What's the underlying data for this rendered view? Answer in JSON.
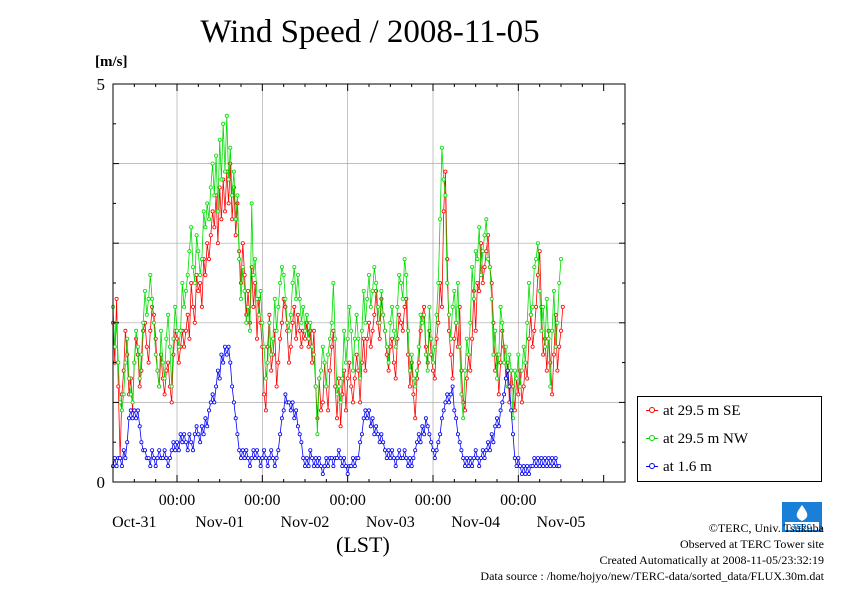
{
  "page": {
    "title": "Wind Speed / 2008-11-05",
    "credits": [
      "©TERC, Univ. Tsukuba",
      "Observed at TERC Tower site",
      "Created Automatically at 2008-11-05/23:32:19",
      "Data source : /home/hojyo/new/TERC-data/sorted_data/FLUX.30m.dat"
    ],
    "logo_text": "TERC"
  },
  "chart_data": {
    "type": "line",
    "title": "Wind Speed / 2008-11-05",
    "ylabel": "[m/s]",
    "xlabel": "(LST)",
    "ylim": [
      0,
      5
    ],
    "y_ticks": [
      "0",
      "5"
    ],
    "x_range_hours": [
      -18,
      126
    ],
    "time_ticks": [
      {
        "hour": 0,
        "label": "00:00"
      },
      {
        "hour": 24,
        "label": "00:00"
      },
      {
        "hour": 48,
        "label": "00:00"
      },
      {
        "hour": 72,
        "label": "00:00"
      },
      {
        "hour": 96,
        "label": "00:00"
      }
    ],
    "date_labels": [
      {
        "hour": -12,
        "label": "Oct-31"
      },
      {
        "hour": 12,
        "label": "Nov-01"
      },
      {
        "hour": 36,
        "label": "Nov-02"
      },
      {
        "hour": 60,
        "label": "Nov-03"
      },
      {
        "hour": 84,
        "label": "Nov-04"
      },
      {
        "hour": 108,
        "label": "Nov-05"
      }
    ],
    "grid": true,
    "legend_position": "right-bottom",
    "series": [
      {
        "name": "at 29.5 m SE",
        "color": "#ff0000",
        "step_hours": 0.5,
        "start_hour": -18,
        "values": [
          2.0,
          1.5,
          2.3,
          1.2,
          0.3,
          1.1,
          1.4,
          1.9,
          1.6,
          1.1,
          1.3,
          0.9,
          1.5,
          1.8,
          1.6,
          1.2,
          1.4,
          1.9,
          2.0,
          1.7,
          1.5,
          1.9,
          2.2,
          2.1,
          1.8,
          1.4,
          1.2,
          1.6,
          1.3,
          1.1,
          1.4,
          1.5,
          1.2,
          1.0,
          1.6,
          1.9,
          1.8,
          1.5,
          1.7,
          1.9,
          1.7,
          1.9,
          2.1,
          1.8,
          2.5,
          2.2,
          2.0,
          2.6,
          2.4,
          2.5,
          2.2,
          2.8,
          2.6,
          3.0,
          2.8,
          3.1,
          3.4,
          3.2,
          3.6,
          3.0,
          3.7,
          3.3,
          3.8,
          3.4,
          3.9,
          3.5,
          4.0,
          3.3,
          3.7,
          3.1,
          3.5,
          2.9,
          2.5,
          3.0,
          2.6,
          2.1,
          2.4,
          2.0,
          2.7,
          2.2,
          2.5,
          1.8,
          2.3,
          2.0,
          1.7,
          1.1,
          0.9,
          1.7,
          2.1,
          1.4,
          1.6,
          1.9,
          1.2,
          1.5,
          1.8,
          2.0,
          2.3,
          2.2,
          1.9,
          1.5,
          1.7,
          2.0,
          2.2,
          1.8,
          2.1,
          1.9,
          1.7,
          1.9,
          1.8,
          2.0,
          1.7,
          1.9,
          1.5,
          1.9,
          1.2,
          0.8,
          1.3,
          0.9,
          1.0,
          1.5,
          1.2,
          0.9,
          1.4,
          1.7,
          1.9,
          1.2,
          0.8,
          1.3,
          0.7,
          1.1,
          1.4,
          0.9,
          1.3,
          1.5,
          1.2,
          1.0,
          1.3,
          1.6,
          1.4,
          1.0,
          1.5,
          1.8,
          1.4,
          1.8,
          2.0,
          1.7,
          1.9,
          2.1,
          2.4,
          2.0,
          1.8,
          2.3,
          2.1,
          1.9,
          1.6,
          1.4,
          1.7,
          1.8,
          1.5,
          1.3,
          1.8,
          2.1,
          2.0,
          1.9,
          2.2,
          2.3,
          1.6,
          1.2,
          1.5,
          1.1,
          0.8,
          1.3,
          1.5,
          1.9,
          2.1,
          2.2,
          1.7,
          1.5,
          1.9,
          1.6,
          1.4,
          1.3,
          1.8,
          2.0,
          2.5,
          2.2,
          3.4,
          3.9,
          2.8,
          1.9,
          1.6,
          1.3,
          1.8,
          2.0,
          1.7,
          2.2,
          1.4,
          1.0,
          0.9,
          1.3,
          1.6,
          1.4,
          1.8,
          2.4,
          1.9,
          2.5,
          2.4,
          3.0,
          2.5,
          2.7,
          2.9,
          3.1,
          2.7,
          2.5,
          2.0,
          1.4,
          1.6,
          1.1,
          1.5,
          1.9,
          1.7,
          1.3,
          1.5,
          1.0,
          1.4,
          1.2,
          0.9,
          1.3,
          1.1,
          1.4,
          1.0,
          1.2,
          1.5,
          1.3,
          1.8,
          2.1,
          1.7,
          1.9,
          2.2,
          2.6,
          2.9,
          2.2,
          1.6,
          1.8,
          1.4,
          1.9,
          1.5,
          1.1,
          1.6,
          2.1,
          1.4,
          1.7,
          1.9,
          2.2
        ]
      },
      {
        "name": "at 29.5 m NW",
        "color": "#00dd00",
        "step_hours": 0.5,
        "start_hour": -18,
        "values": [
          2.2,
          1.7,
          2.0,
          1.5,
          1.0,
          0.9,
          1.1,
          1.5,
          1.8,
          1.3,
          1.1,
          1.0,
          1.5,
          1.9,
          1.7,
          1.3,
          1.6,
          2.0,
          2.4,
          2.1,
          2.3,
          2.6,
          2.3,
          2.0,
          1.6,
          1.4,
          1.2,
          1.9,
          1.5,
          1.3,
          1.8,
          2.1,
          1.7,
          1.2,
          1.8,
          2.2,
          1.9,
          1.7,
          1.9,
          2.5,
          2.2,
          2.4,
          2.6,
          2.9,
          3.2,
          2.7,
          2.5,
          3.1,
          2.9,
          2.6,
          2.8,
          3.4,
          3.2,
          3.5,
          3.3,
          3.7,
          4.0,
          3.6,
          4.1,
          3.4,
          4.3,
          3.8,
          4.5,
          3.9,
          4.6,
          3.8,
          4.2,
          3.6,
          3.9,
          3.3,
          3.6,
          2.8,
          2.3,
          2.7,
          2.4,
          2.0,
          2.2,
          1.9,
          3.5,
          2.6,
          2.8,
          2.3,
          2.1,
          2.4,
          2.0,
          1.7,
          1.3,
          1.5,
          2.0,
          1.6,
          1.8,
          2.3,
          1.9,
          2.2,
          2.5,
          2.7,
          2.6,
          2.3,
          2.0,
          1.9,
          2.1,
          2.5,
          2.7,
          2.3,
          2.6,
          2.3,
          2.0,
          2.2,
          1.9,
          2.1,
          1.8,
          2.0,
          1.7,
          1.6,
          1.2,
          0.6,
          1.3,
          1.4,
          1.7,
          1.5,
          1.2,
          1.6,
          1.8,
          2.0,
          2.5,
          1.8,
          1.1,
          1.2,
          1.0,
          1.3,
          1.9,
          1.5,
          1.8,
          2.2,
          1.9,
          1.4,
          1.8,
          2.1,
          1.8,
          1.3,
          1.9,
          2.4,
          2.0,
          2.3,
          2.6,
          2.2,
          2.4,
          2.7,
          2.5,
          2.2,
          2.0,
          2.4,
          2.1,
          1.9,
          1.7,
          1.5,
          2.0,
          2.2,
          1.9,
          1.7,
          2.2,
          2.6,
          2.5,
          2.3,
          2.8,
          2.6,
          1.9,
          1.4,
          1.6,
          1.3,
          1.2,
          1.4,
          1.7,
          2.1,
          2.0,
          2.1,
          1.6,
          1.4,
          2.2,
          1.8,
          1.5,
          1.7,
          2.1,
          2.5,
          3.3,
          4.2,
          3.8,
          3.6,
          2.5,
          2.1,
          1.8,
          2.2,
          2.4,
          2.0,
          2.5,
          1.7,
          1.1,
          0.8,
          1.4,
          1.8,
          1.6,
          2.0,
          2.7,
          2.3,
          2.9,
          2.8,
          3.2,
          2.6,
          2.9,
          3.1,
          3.3,
          2.8,
          2.7,
          2.3,
          1.6,
          1.9,
          1.3,
          1.6,
          2.2,
          2.0,
          1.5,
          1.7,
          1.2,
          1.6,
          1.4,
          0.8,
          1.4,
          1.3,
          1.6,
          1.2,
          1.4,
          1.7,
          1.5,
          2.0,
          2.5,
          2.1,
          2.2,
          2.7,
          2.8,
          3.0,
          2.4,
          1.9,
          2.2,
          1.7,
          2.3,
          1.8,
          1.2,
          1.9,
          2.4,
          1.7,
          2.0,
          2.5,
          2.8
        ]
      },
      {
        "name": "at 1.6 m",
        "color": "#0000ff",
        "step_hours": 0.5,
        "start_hour": -18,
        "values": [
          0.2,
          0.3,
          0.2,
          0.3,
          0.3,
          0.2,
          0.4,
          0.3,
          0.5,
          0.8,
          0.9,
          0.8,
          0.9,
          0.8,
          0.9,
          0.7,
          0.5,
          0.4,
          0.4,
          0.3,
          0.3,
          0.2,
          0.4,
          0.3,
          0.2,
          0.3,
          0.4,
          0.3,
          0.3,
          0.4,
          0.3,
          0.2,
          0.3,
          0.4,
          0.5,
          0.4,
          0.5,
          0.4,
          0.6,
          0.5,
          0.6,
          0.5,
          0.4,
          0.6,
          0.5,
          0.4,
          0.6,
          0.7,
          0.6,
          0.5,
          0.7,
          0.6,
          0.8,
          0.7,
          0.9,
          1.0,
          1.1,
          1.0,
          1.2,
          1.4,
          1.3,
          1.6,
          1.5,
          1.7,
          1.6,
          1.7,
          1.5,
          1.2,
          1.0,
          0.8,
          0.6,
          0.4,
          0.3,
          0.4,
          0.3,
          0.4,
          0.3,
          0.2,
          0.3,
          0.4,
          0.3,
          0.4,
          0.3,
          0.2,
          0.3,
          0.4,
          0.3,
          0.2,
          0.3,
          0.4,
          0.3,
          0.2,
          0.3,
          0.4,
          0.6,
          0.8,
          0.9,
          1.1,
          1.0,
          1.0,
          0.9,
          1.0,
          0.8,
          0.9,
          0.7,
          0.6,
          0.5,
          0.3,
          0.2,
          0.3,
          0.2,
          0.4,
          0.3,
          0.2,
          0.3,
          0.2,
          0.3,
          0.2,
          0.1,
          0.2,
          0.3,
          0.2,
          0.3,
          0.3,
          0.2,
          0.3,
          0.3,
          0.4,
          0.3,
          0.2,
          0.3,
          0.2,
          0.1,
          0.2,
          0.2,
          0.3,
          0.2,
          0.3,
          0.3,
          0.5,
          0.6,
          0.8,
          0.9,
          0.8,
          0.9,
          0.7,
          0.8,
          0.6,
          0.7,
          0.6,
          0.5,
          0.6,
          0.5,
          0.4,
          0.3,
          0.4,
          0.3,
          0.4,
          0.3,
          0.2,
          0.3,
          0.4,
          0.3,
          0.3,
          0.4,
          0.3,
          0.2,
          0.3,
          0.2,
          0.3,
          0.4,
          0.5,
          0.6,
          0.5,
          0.7,
          0.6,
          0.8,
          0.7,
          0.6,
          0.5,
          0.4,
          0.3,
          0.4,
          0.5,
          0.6,
          0.8,
          0.9,
          1.0,
          1.1,
          1.0,
          1.1,
          1.2,
          0.9,
          0.8,
          0.6,
          0.5,
          0.4,
          0.3,
          0.2,
          0.3,
          0.2,
          0.3,
          0.2,
          0.3,
          0.4,
          0.3,
          0.2,
          0.3,
          0.4,
          0.3,
          0.4,
          0.5,
          0.4,
          0.6,
          0.5,
          0.7,
          0.8,
          0.7,
          0.9,
          1.0,
          1.1,
          1.3,
          1.4,
          1.2,
          0.9,
          0.6,
          0.3,
          0.2,
          0.3,
          0.2,
          0.1,
          0.2,
          0.1,
          0.2,
          0.1,
          0.2,
          0.2,
          0.3,
          0.2,
          0.3,
          0.2,
          0.3,
          0.2,
          0.3,
          0.2,
          0.3,
          0.2,
          0.3,
          0.2,
          0.3,
          0.2,
          0.2
        ]
      }
    ]
  }
}
